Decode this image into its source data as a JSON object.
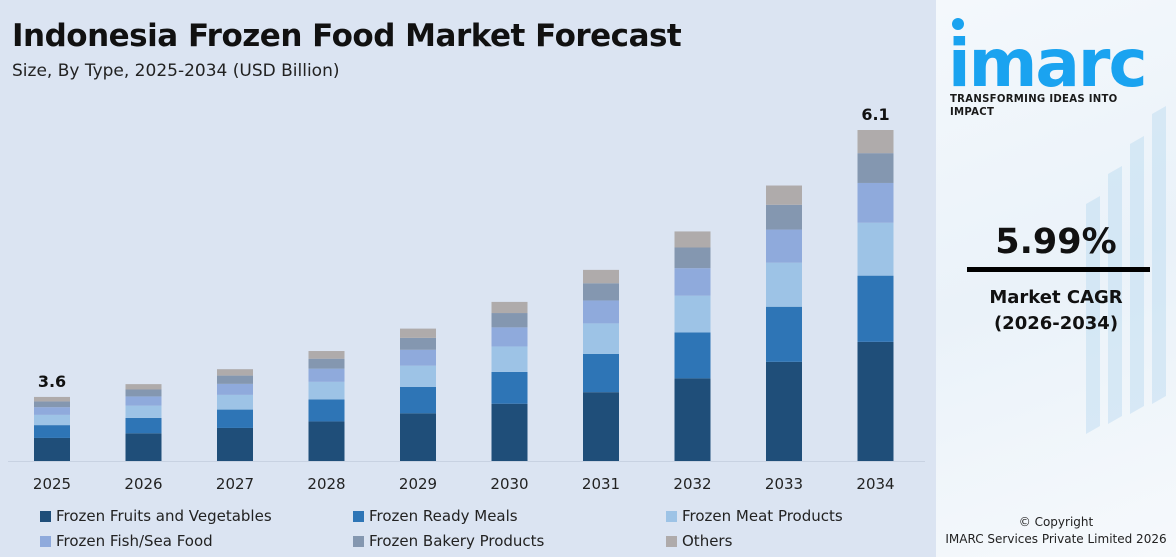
{
  "header": {
    "title": "Indonesia Frozen Food Market Forecast",
    "subtitle": "Size, By Type, 2025-2034 (USD Billion)"
  },
  "chart_data": {
    "type": "bar",
    "stacked": true,
    "title": "Indonesia Frozen Food Market Forecast",
    "subtitle": "Size, By Type, 2025-2034 (USD Billion)",
    "categories": [
      "2025",
      "2026",
      "2027",
      "2028",
      "2029",
      "2030",
      "2031",
      "2032",
      "2033",
      "2034"
    ],
    "totals": [
      3.6,
      3.72,
      3.86,
      4.03,
      4.24,
      4.49,
      4.79,
      5.15,
      5.58,
      6.1
    ],
    "total_labels": [
      {
        "category": "2025",
        "text": "3.6"
      },
      {
        "category": "2034",
        "text": "6.1"
      }
    ],
    "series": [
      {
        "name": "Frozen Fruits and Vegetables",
        "color": "#1f4e79",
        "share": 0.36
      },
      {
        "name": "Frozen Ready Meals",
        "color": "#2e75b6",
        "share": 0.2
      },
      {
        "name": "Frozen Meat Products",
        "color": "#9dc3e6",
        "share": 0.16
      },
      {
        "name": "Frozen Fish/Sea Food",
        "color": "#8faadc",
        "share": 0.12
      },
      {
        "name": "Frozen Bakery Products",
        "color": "#8497b0",
        "share": 0.09
      },
      {
        "name": "Others",
        "color": "#afabab",
        "share": 0.07
      }
    ],
    "ylim": [
      3.0,
      6.1
    ],
    "grid": false,
    "legend_position": "bottom"
  },
  "brand": {
    "logo": "imarc",
    "tagline": "TRANSFORMING IDEAS INTO IMPACT",
    "color": "#1aa3f0"
  },
  "cagr": {
    "value": "5.99%",
    "label": "Market CAGR",
    "period": "(2026-2034)"
  },
  "footer": {
    "copyright": "© Copyright",
    "company": "IMARC Services Private Limited 2026"
  }
}
